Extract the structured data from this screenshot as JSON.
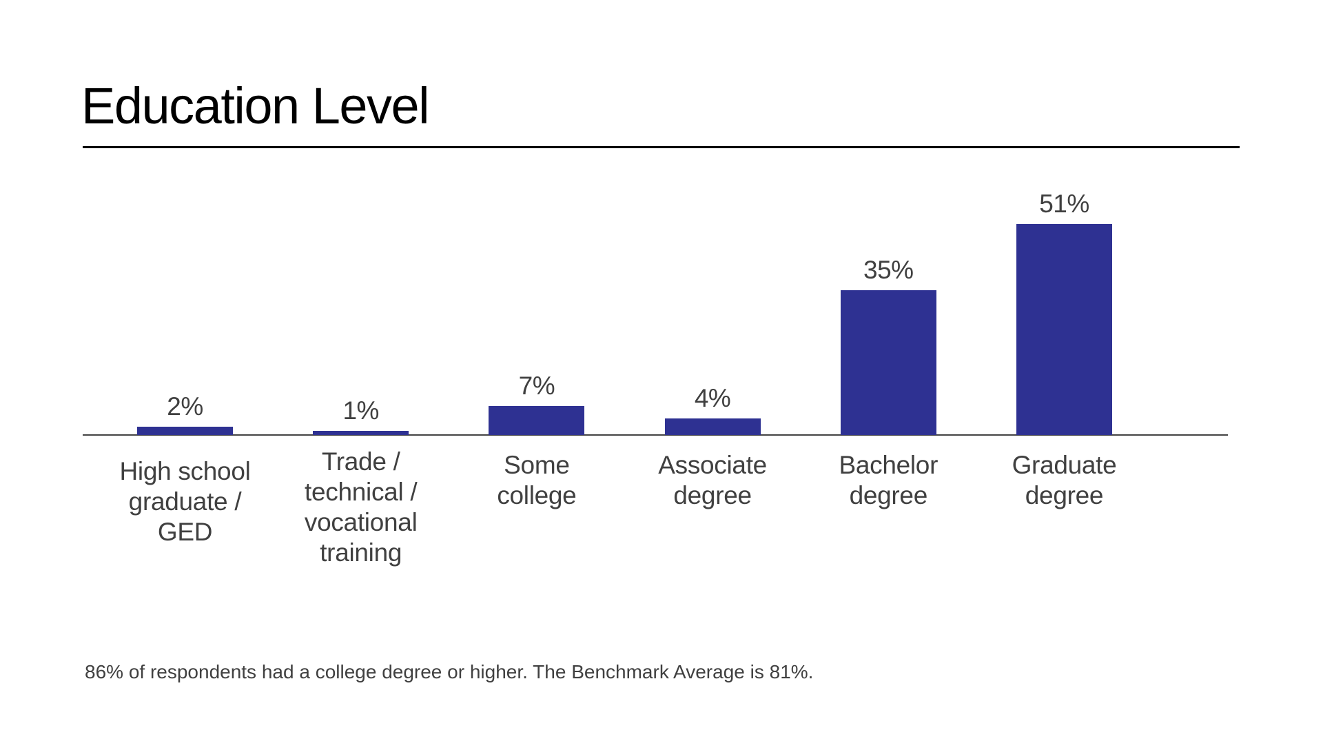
{
  "title": "Education Level",
  "footnote": "86% of respondents had a college degree or higher. The Benchmark Average is 81%.",
  "colors": {
    "bar": "#2e3192",
    "text": "#404040",
    "title": "#000000",
    "axis": "#444444"
  },
  "chart_data": {
    "type": "bar",
    "title": "Education Level",
    "xlabel": "",
    "ylabel": "",
    "categories": [
      "High school graduate / GED",
      "Trade / technical / vocational training",
      "Some college",
      "Associate degree",
      "Bachelor degree",
      "Graduate degree"
    ],
    "category_lines": [
      [
        "High school",
        "graduate /",
        "GED"
      ],
      [
        "Trade /",
        "technical /",
        "vocational",
        "training"
      ],
      [
        "Some",
        "college"
      ],
      [
        "Associate",
        "degree"
      ],
      [
        "Bachelor",
        "degree"
      ],
      [
        "Graduate",
        "degree"
      ]
    ],
    "values": [
      2,
      1,
      7,
      4,
      35,
      51
    ],
    "value_labels": [
      "2%",
      "1%",
      "7%",
      "4%",
      "35%",
      "51%"
    ],
    "unit": "%",
    "ylim": [
      0,
      55
    ],
    "grid": false,
    "legend": null,
    "data_labels": true,
    "annotation": "86% of respondents had a college degree or higher. The Benchmark Average is 81%."
  }
}
